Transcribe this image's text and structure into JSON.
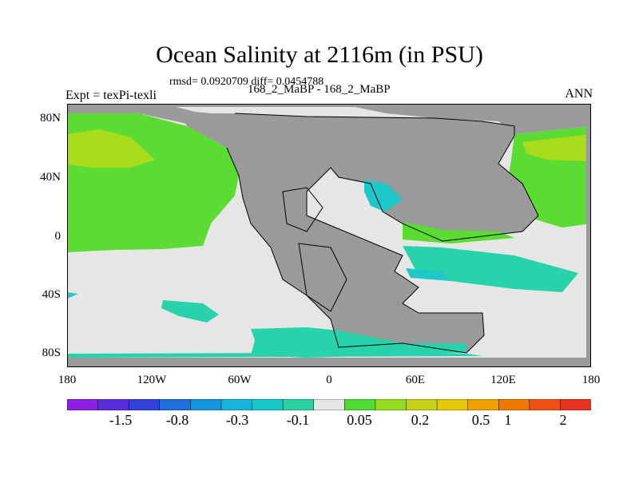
{
  "title": "Ocean Salinity at 2116m (in PSU)",
  "stats": "rmsd= 0.0920709 diff= 0.0454788",
  "runs": "168_2_MaBP - 168_2_MaBP",
  "expt": "Expt = texPi-texli",
  "season": "ANN",
  "y_ticks": [
    "80N",
    "40N",
    "0",
    "40S",
    "80S"
  ],
  "x_ticks": [
    "180",
    "120W",
    "60W",
    "0",
    "60E",
    "120E",
    "180"
  ],
  "colorbar": {
    "labels": [
      "-1.5",
      "-0.8",
      "-0.3",
      "-0.1",
      "0.05",
      "0.2",
      "0.5",
      "1",
      "2"
    ],
    "colors": [
      "#8c1ee6",
      "#5a2ddc",
      "#3240dc",
      "#1e6edc",
      "#1496dc",
      "#14b4dc",
      "#14c8c8",
      "#28d2a0",
      "#e6e6e6",
      "#50dc32",
      "#96dc1e",
      "#c8d214",
      "#e6c80a",
      "#f0a000",
      "#f07800",
      "#f05014",
      "#e6321e"
    ]
  },
  "map_colors": {
    "land": "#9a9a9a",
    "near_zero": "#e6e6e6",
    "green": "#5adc32",
    "yellowgreen": "#aadc1e",
    "cyan": "#28d2aa",
    "teal": "#1ec8c8"
  }
}
